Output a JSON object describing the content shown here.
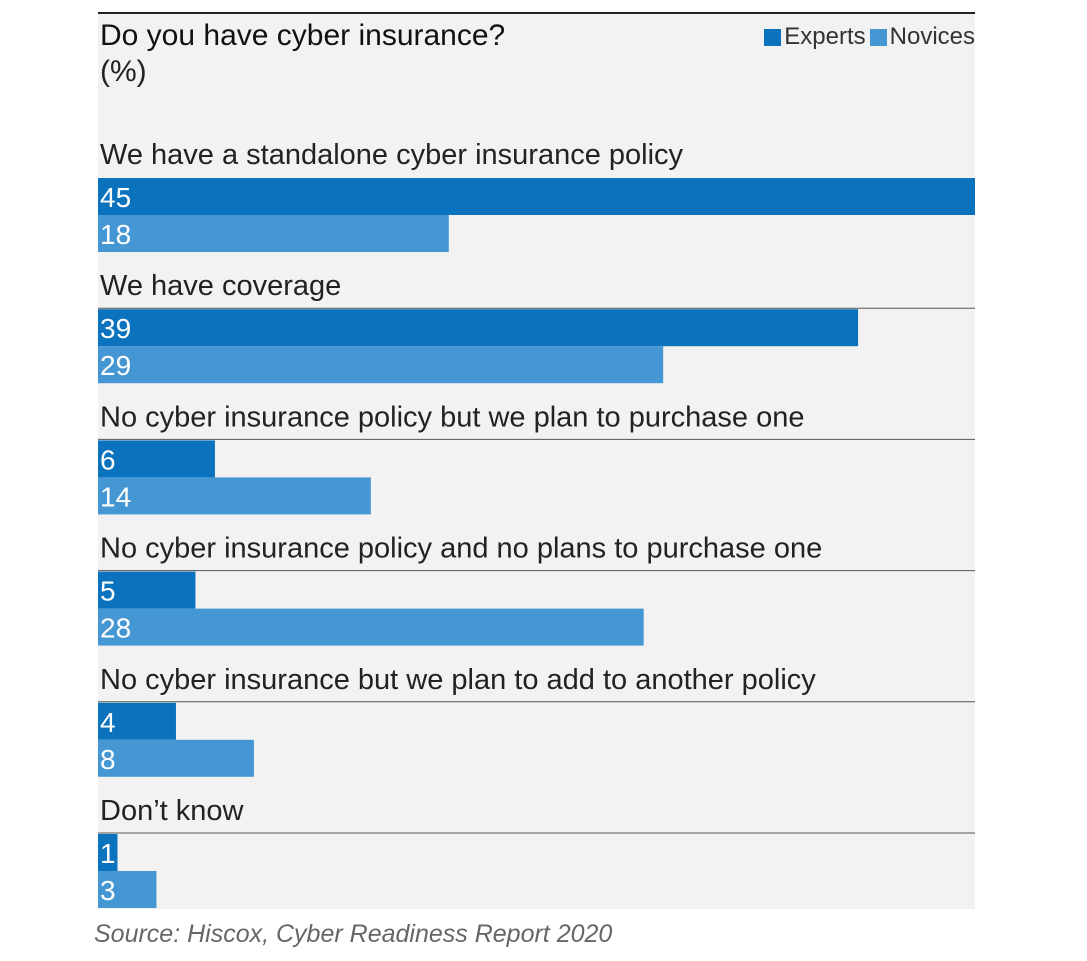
{
  "chart_data": {
    "type": "bar",
    "orientation": "horizontal",
    "title": "Do you have cyber insurance?",
    "subtitle": "(%)",
    "categories": [
      "We have a standalone cyber insurance policy",
      "We have coverage",
      "No cyber insurance policy but we plan to purchase one",
      "No cyber insurance policy and no plans to purchase one",
      "No cyber insurance but we plan to add to another policy",
      "Don’t know"
    ],
    "series": [
      {
        "name": "Experts",
        "values": [
          45,
          39,
          6,
          5,
          4,
          1
        ],
        "color": "#0b72bd"
      },
      {
        "name": "Novices",
        "values": [
          18,
          29,
          14,
          28,
          8,
          3
        ],
        "color": "#4597d4"
      }
    ],
    "xlim": [
      0,
      45
    ],
    "legend": "top-right",
    "grid": false,
    "data_labels": "inside-left"
  },
  "source": "Source: Hiscox, Cyber Readiness Report 2020"
}
